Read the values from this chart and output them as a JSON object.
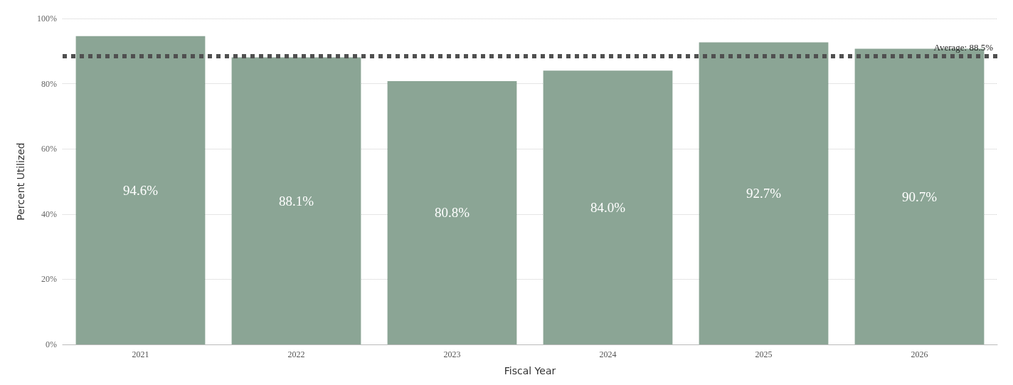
{
  "chart_data": {
    "type": "bar",
    "xlabel": "Fiscal Year",
    "ylabel": "Percent Utilized",
    "categories": [
      "2021",
      "2022",
      "2023",
      "2024",
      "2025",
      "2026"
    ],
    "values": [
      94.6,
      88.1,
      80.8,
      84.0,
      92.7,
      90.7
    ],
    "value_labels": [
      "94.6%",
      "88.1%",
      "80.8%",
      "84.0%",
      "92.7%",
      "90.7%"
    ],
    "color": "#8ba595",
    "ylim": [
      0,
      100
    ],
    "yticks": [
      {
        "value": 0,
        "label": "0%"
      },
      {
        "value": 20,
        "label": "20%"
      },
      {
        "value": 40,
        "label": "40%"
      },
      {
        "value": 60,
        "label": "60%"
      },
      {
        "value": 80,
        "label": "80%"
      },
      {
        "value": 100,
        "label": "100%"
      }
    ],
    "grid": "y",
    "ref_lines": [
      {
        "axis": "y",
        "value": 88.5,
        "label": "Average: 88.5%",
        "color": "#505050",
        "line_style": "dotted"
      }
    ]
  }
}
